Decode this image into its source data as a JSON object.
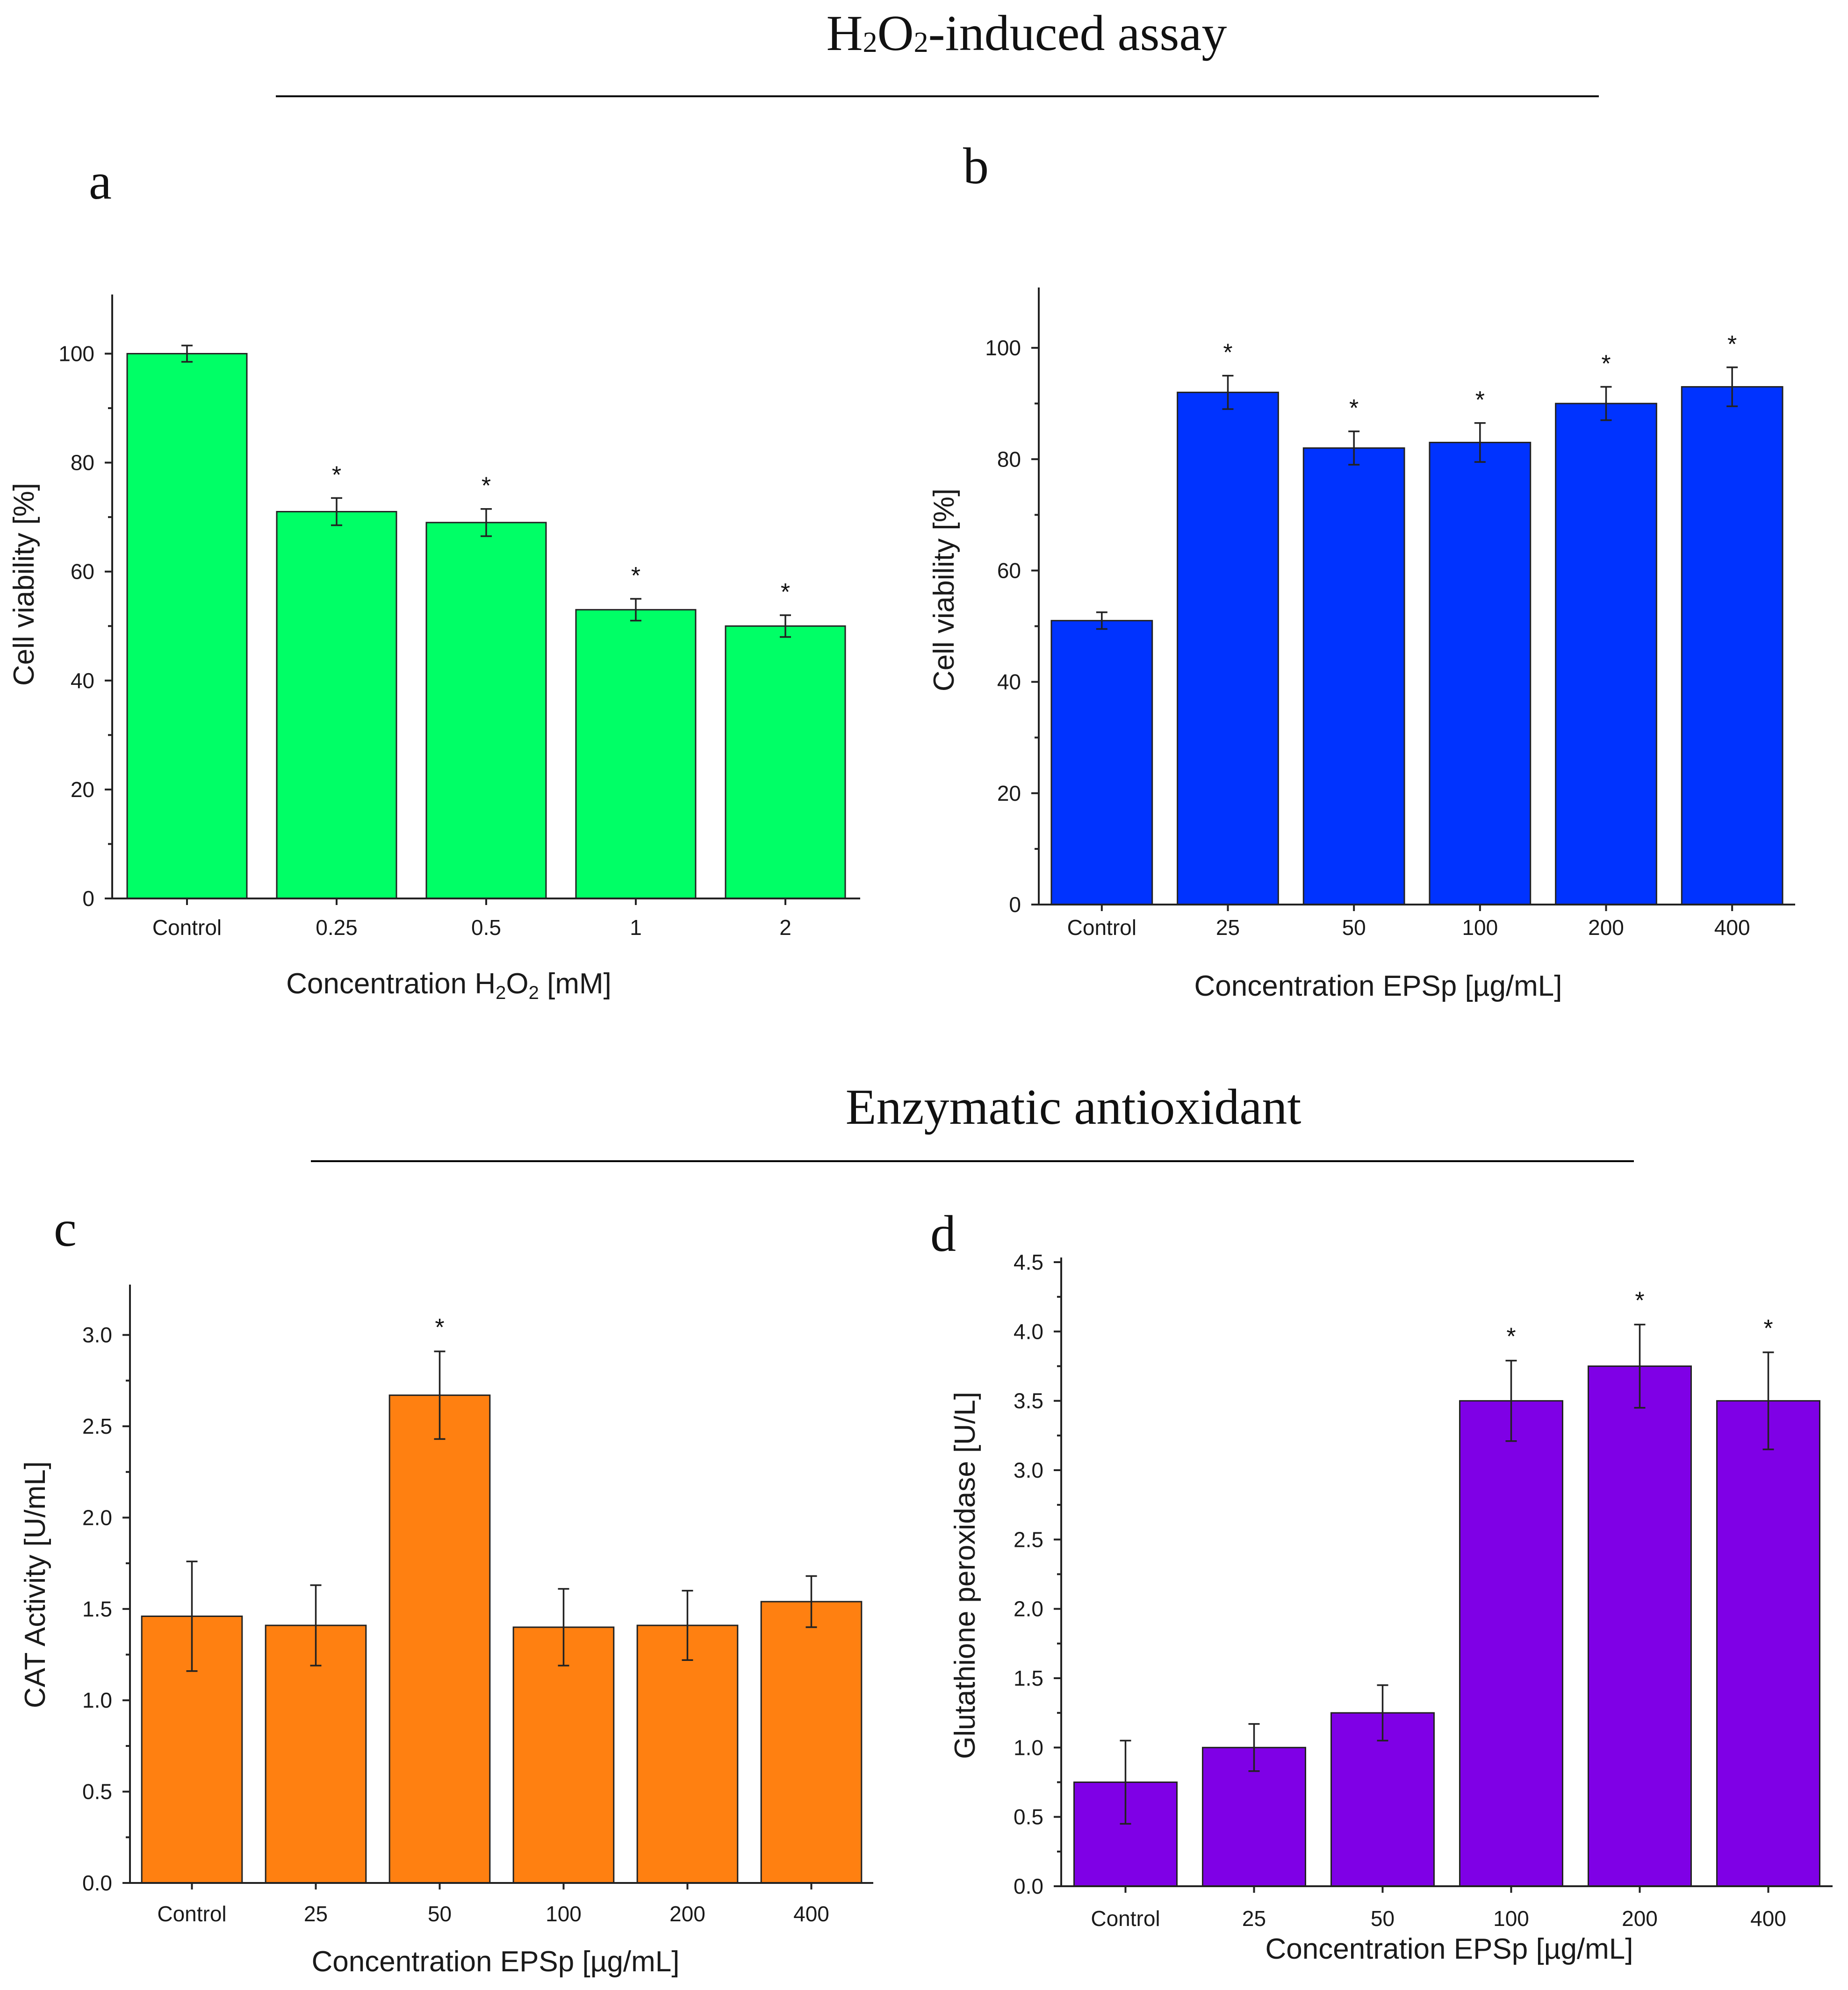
{
  "sections": [
    {
      "title_parts": [
        "H",
        "2",
        "O",
        "2",
        "-induced assay"
      ]
    },
    {
      "title": "Enzymatic antioxidant"
    }
  ],
  "chart_data": [
    {
      "panel": "a",
      "type": "bar",
      "categories": [
        "Control",
        "0.25",
        "0.5",
        "1",
        "2"
      ],
      "values": [
        100,
        71,
        69,
        53,
        50
      ],
      "errors": [
        1.5,
        2.5,
        2.5,
        2.0,
        2.0
      ],
      "significant": [
        false,
        true,
        true,
        true,
        true
      ],
      "marker": "*",
      "xlabel_parts": [
        "Concentration H",
        "2",
        "O",
        "2",
        " [mM]"
      ],
      "ylabel": "Cell viability [%]",
      "ylim": [
        0,
        110
      ],
      "yticks": [
        "0",
        "20",
        "40",
        "60",
        "80",
        "100"
      ],
      "ytick_values": [
        0,
        20,
        40,
        60,
        80,
        100
      ],
      "color": "#00ff66"
    },
    {
      "panel": "b",
      "type": "bar",
      "categories": [
        "Control",
        "25",
        "50",
        "100",
        "200",
        "400"
      ],
      "values": [
        51,
        92,
        82,
        83,
        90,
        93
      ],
      "errors": [
        1.5,
        3.0,
        3.0,
        3.5,
        3.0,
        3.5
      ],
      "significant": [
        false,
        true,
        true,
        true,
        true,
        true
      ],
      "marker": "*",
      "xlabel": "Concentration EPSp [µg/mL]",
      "ylabel": "Cell viability [%]",
      "ylim": [
        0,
        110
      ],
      "yticks": [
        "0",
        "20",
        "40",
        "60",
        "80",
        "100"
      ],
      "ytick_values": [
        0,
        20,
        40,
        60,
        80,
        100
      ],
      "color": "#0033ff"
    },
    {
      "panel": "c",
      "type": "bar",
      "categories": [
        "Control",
        "25",
        "50",
        "100",
        "200",
        "400"
      ],
      "values": [
        1.46,
        1.41,
        2.67,
        1.4,
        1.41,
        1.54
      ],
      "errors": [
        0.3,
        0.22,
        0.24,
        0.21,
        0.19,
        0.14
      ],
      "significant": [
        false,
        false,
        true,
        false,
        false,
        false
      ],
      "marker": "*",
      "xlabel": "Concentration EPSp [µg/mL]",
      "ylabel": "CAT Activity [U/mL]",
      "ylim": [
        0,
        3.25
      ],
      "yticks": [
        "0.0",
        "0.5",
        "1.0",
        "1.5",
        "2.0",
        "2.5",
        "3.0"
      ],
      "ytick_values": [
        0,
        0.5,
        1.0,
        1.5,
        2.0,
        2.5,
        3.0
      ],
      "color": "#ff8011"
    },
    {
      "panel": "d",
      "type": "bar",
      "categories": [
        "Control",
        "25",
        "50",
        "100",
        "200",
        "400"
      ],
      "values": [
        0.75,
        1.0,
        1.25,
        3.5,
        3.75,
        3.5
      ],
      "errors": [
        0.3,
        0.17,
        0.2,
        0.29,
        0.3,
        0.35
      ],
      "significant": [
        false,
        false,
        false,
        true,
        true,
        true
      ],
      "marker": "*",
      "xlabel": "Concentration EPSp [µg/mL]",
      "ylabel": "Glutathione peroxidase [U/L]",
      "ylim": [
        0,
        4.5
      ],
      "yticks": [
        "0.0",
        "0.5",
        "1.0",
        "1.5",
        "2.0",
        "2.5",
        "3.0",
        "3.5",
        "4.0",
        "4.5"
      ],
      "ytick_values": [
        0,
        0.5,
        1.0,
        1.5,
        2.0,
        2.5,
        3.0,
        3.5,
        4.0,
        4.5
      ],
      "color": "#7f00e6"
    }
  ]
}
